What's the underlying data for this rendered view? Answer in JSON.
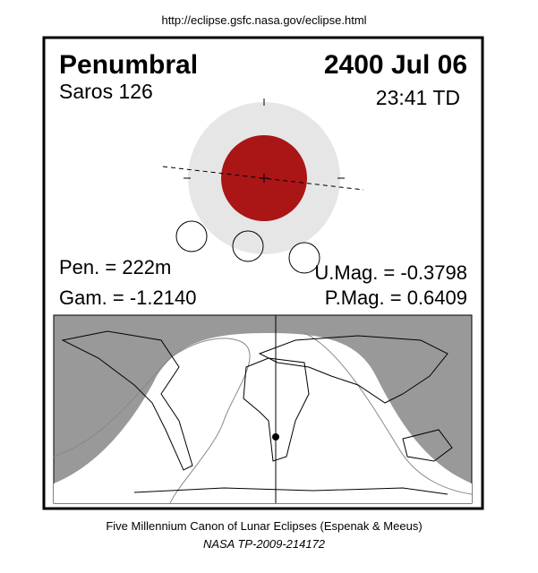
{
  "header": {
    "url": "http://eclipse.gsfc.nasa.gov/eclipse.html"
  },
  "eclipse": {
    "type": "Penumbral",
    "date": "2400 Jul 06",
    "saros": "Saros 126",
    "time": "23:41 TD",
    "pen": "Pen. = 222m",
    "gam": "Gam. = -1.2140",
    "umag": "U.Mag. = -0.3798",
    "pmag": "P.Mag. = 0.6409"
  },
  "footer": {
    "line1": "Five Millennium Canon of Lunar Eclipses (Espenak & Meeus)",
    "line2": "NASA TP-2009-214172"
  }
}
